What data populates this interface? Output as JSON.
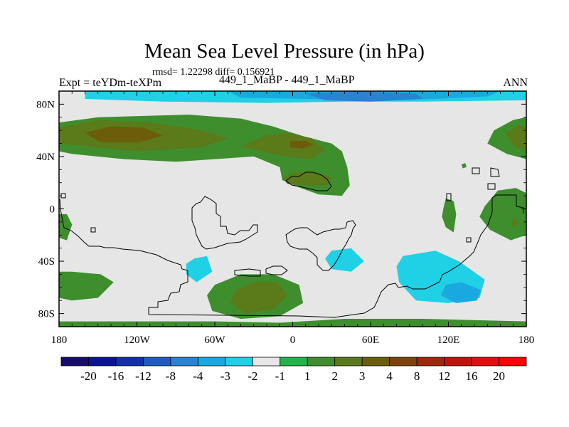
{
  "chart_data": {
    "type": "heatmap",
    "title": "Mean Sea Level Pressure (in hPa)",
    "stats_text": "rmsd= 1.22298 diff= 0.156921",
    "left_label": "Expt = teYDm-teXPm",
    "center_label": "449_1_MaBP - 449_1_MaBP",
    "right_label": "ANN",
    "xlabel": "",
    "ylabel": "",
    "xlim": [
      -180,
      180
    ],
    "ylim": [
      -90,
      90
    ],
    "x_ticks": [
      {
        "value": -180,
        "label": "180"
      },
      {
        "value": -120,
        "label": "120W"
      },
      {
        "value": -60,
        "label": "60W"
      },
      {
        "value": 0,
        "label": "0"
      },
      {
        "value": 60,
        "label": "60E"
      },
      {
        "value": 120,
        "label": "120E"
      },
      {
        "value": 180,
        "label": "180"
      }
    ],
    "y_ticks": [
      {
        "value": 80,
        "label": "80N"
      },
      {
        "value": 40,
        "label": "40N"
      },
      {
        "value": 0,
        "label": "0"
      },
      {
        "value": -40,
        "label": "40S"
      },
      {
        "value": -80,
        "label": "80S"
      }
    ],
    "colorbar": {
      "levels": [
        "-20",
        "-16",
        "-12",
        "-8",
        "-4",
        "-3",
        "-2",
        "-1",
        "1",
        "2",
        "3",
        "4",
        "8",
        "12",
        "16",
        "20"
      ],
      "colors": [
        "#160d6b",
        "#0a1596",
        "#1230a8",
        "#1e5cc0",
        "#2a82d2",
        "#1aa8e0",
        "#20d0e4",
        "#e6e6e6",
        "#22b44a",
        "#3e8e2e",
        "#5b7a1a",
        "#6c5d0a",
        "#7d420a",
        "#9e280a",
        "#c01408",
        "#e20e0e",
        "#ff0000"
      ]
    },
    "fields": [
      {
        "name": "arctic-band-neg1",
        "level": "-2 to -1",
        "poly": [
          [
            -180,
            76
          ],
          [
            180,
            76
          ],
          [
            180,
            90
          ],
          [
            -180,
            90
          ]
        ]
      },
      {
        "name": "arctic-band-neg2",
        "level": "-3 to -2",
        "poly": [
          [
            -160,
            90
          ],
          [
            -160,
            84
          ],
          [
            -100,
            82
          ],
          [
            -20,
            81
          ],
          [
            40,
            82
          ],
          [
            100,
            82
          ],
          [
            180,
            83
          ],
          [
            180,
            90
          ]
        ]
      },
      {
        "name": "arctic-band-neg3",
        "level": "-4 to -3",
        "poly": [
          [
            -50,
            90
          ],
          [
            -40,
            85
          ],
          [
            10,
            84
          ],
          [
            60,
            83
          ],
          [
            110,
            84
          ],
          [
            150,
            86
          ],
          [
            160,
            90
          ]
        ]
      },
      {
        "name": "arctic-core-neg4",
        "level": "-8 to -4",
        "poly": [
          [
            10,
            88
          ],
          [
            25,
            83
          ],
          [
            60,
            82
          ],
          [
            100,
            84
          ],
          [
            95,
            88
          ],
          [
            50,
            90
          ]
        ]
      },
      {
        "name": "north-atlantic-trough",
        "level": "-2 to -1",
        "poly": [
          [
            -30,
            68
          ],
          [
            -10,
            62
          ],
          [
            20,
            58
          ],
          [
            40,
            56
          ],
          [
            60,
            52
          ],
          [
            80,
            40
          ],
          [
            100,
            34
          ],
          [
            115,
            40
          ],
          [
            122,
            55
          ],
          [
            120,
            68
          ],
          [
            90,
            76
          ],
          [
            40,
            76
          ],
          [
            0,
            76
          ],
          [
            -30,
            74
          ]
        ]
      },
      {
        "name": "north-pacific-high",
        "level": "1 to 2",
        "poly": [
          [
            -180,
            66
          ],
          [
            -150,
            70
          ],
          [
            -80,
            72
          ],
          [
            -40,
            69
          ],
          [
            -15,
            63
          ],
          [
            0,
            58
          ],
          [
            10,
            55
          ],
          [
            30,
            50
          ],
          [
            38,
            44
          ],
          [
            42,
            32
          ],
          [
            44,
            18
          ],
          [
            38,
            10
          ],
          [
            20,
            11
          ],
          [
            6,
            16
          ],
          [
            -8,
            22
          ],
          [
            -10,
            32
          ],
          [
            -30,
            40
          ],
          [
            -60,
            38
          ],
          [
            -90,
            36
          ],
          [
            -130,
            38
          ],
          [
            -170,
            42
          ],
          [
            -180,
            44
          ]
        ]
      },
      {
        "name": "north-pacific-high-core",
        "level": "2 to 3",
        "poly": [
          [
            -180,
            62
          ],
          [
            -150,
            68
          ],
          [
            -110,
            66
          ],
          [
            -70,
            60
          ],
          [
            -50,
            54
          ],
          [
            -70,
            47
          ],
          [
            -120,
            44
          ],
          [
            -160,
            48
          ],
          [
            -180,
            50
          ]
        ]
      },
      {
        "name": "north-pacific-high-center",
        "level": "3 to 4",
        "poly": [
          [
            -160,
            58
          ],
          [
            -140,
            63
          ],
          [
            -115,
            62
          ],
          [
            -100,
            56
          ],
          [
            -118,
            51
          ],
          [
            -148,
            51
          ]
        ]
      },
      {
        "name": "north-atlantic-high-core",
        "level": "2 to 3",
        "poly": [
          [
            -20,
            56
          ],
          [
            -5,
            58
          ],
          [
            15,
            54
          ],
          [
            25,
            45
          ],
          [
            15,
            38
          ],
          [
            -5,
            40
          ],
          [
            -25,
            44
          ],
          [
            -40,
            48
          ]
        ]
      },
      {
        "name": "north-atlantic-high-center",
        "level": "3 to 4",
        "poly": [
          [
            -2,
            52
          ],
          [
            10,
            52
          ],
          [
            16,
            49
          ],
          [
            8,
            46
          ],
          [
            -2,
            47
          ]
        ]
      },
      {
        "name": "sahara-high-core",
        "level": "2 to 3",
        "poly": [
          [
            -8,
            24
          ],
          [
            3,
            28
          ],
          [
            18,
            28
          ],
          [
            30,
            24
          ],
          [
            26,
            18
          ],
          [
            10,
            18
          ],
          [
            -4,
            19
          ]
        ]
      },
      {
        "name": "siberia-high",
        "level": "1 to 2",
        "poly": [
          [
            155,
            60
          ],
          [
            170,
            68
          ],
          [
            180,
            70
          ],
          [
            180,
            38
          ],
          [
            165,
            42
          ],
          [
            150,
            50
          ]
        ]
      },
      {
        "name": "siberia-high-core",
        "level": "2 to 3",
        "poly": [
          [
            164,
            58
          ],
          [
            174,
            64
          ],
          [
            180,
            62
          ],
          [
            180,
            44
          ],
          [
            170,
            48
          ]
        ]
      },
      {
        "name": "arabia-low-patch",
        "level": "1 to 2",
        "poly": [
          [
            130,
            34
          ],
          [
            133,
            35
          ],
          [
            134,
            32
          ],
          [
            131,
            31
          ]
        ]
      },
      {
        "name": "australia-high",
        "level": "1 to 2",
        "poly": [
          [
            148,
            2
          ],
          [
            158,
            14
          ],
          [
            172,
            16
          ],
          [
            180,
            12
          ],
          [
            180,
            -20
          ],
          [
            168,
            -24
          ],
          [
            152,
            -16
          ],
          [
            144,
            -6
          ]
        ]
      },
      {
        "name": "australia-high-core",
        "level": "2 to 3",
        "poly": [
          [
            168,
            -10
          ],
          [
            172,
            -7
          ],
          [
            174,
            -12
          ],
          [
            170,
            -14
          ]
        ]
      },
      {
        "name": "india-high",
        "level": "1 to 2",
        "poly": [
          [
            116,
            0
          ],
          [
            118,
            8
          ],
          [
            124,
            6
          ],
          [
            126,
            -4
          ],
          [
            124,
            -18
          ],
          [
            118,
            -14
          ],
          [
            115,
            -6
          ]
        ]
      },
      {
        "name": "east-pacific-patch",
        "level": "1 to 2",
        "poly": [
          [
            -180,
            -4
          ],
          [
            -174,
            -4
          ],
          [
            -170,
            -12
          ],
          0,
          [
            -174,
            -24
          ],
          [
            -180,
            -22
          ]
        ]
      },
      {
        "name": "south-pacific-high",
        "level": "1 to 2",
        "poly": [
          [
            -180,
            -48
          ],
          [
            -170,
            -48
          ],
          [
            -148,
            -50
          ],
          [
            -138,
            -56
          ],
          [
            -150,
            -68
          ],
          [
            -170,
            -70
          ],
          [
            -180,
            -68
          ]
        ]
      },
      {
        "name": "southern-trough-outer",
        "level": "-2 to -1",
        "poly": [
          [
            -82,
            -34
          ],
          [
            -50,
            -29
          ],
          [
            -10,
            -25
          ],
          [
            30,
            -24
          ],
          [
            70,
            -22
          ],
          [
            100,
            -22
          ],
          [
            122,
            -25
          ],
          [
            140,
            -31
          ],
          [
            150,
            -38
          ],
          [
            162,
            -46
          ],
          [
            156,
            -60
          ],
          [
            130,
            -70
          ],
          [
            100,
            -72
          ],
          [
            60,
            -74
          ],
          [
            40,
            -78
          ],
          [
            20,
            -85
          ],
          [
            -10,
            -86
          ],
          [
            -40,
            -84
          ],
          [
            -60,
            -82
          ],
          [
            -76,
            -76
          ],
          [
            -82,
            -60
          ],
          [
            -86,
            -44
          ]
        ]
      },
      {
        "name": "southern-trough-mid-west",
        "level": "-3 to -2",
        "poly": [
          [
            -76,
            -38
          ],
          [
            -66,
            -36
          ],
          [
            -62,
            -48
          ],
          [
            -74,
            -56
          ],
          [
            -82,
            -50
          ],
          [
            -82,
            -42
          ]
        ]
      },
      {
        "name": "southern-trough-mid-central",
        "level": "-3 to -2",
        "poly": [
          [
            30,
            -32
          ],
          [
            45,
            -30
          ],
          [
            55,
            -40
          ],
          [
            45,
            -48
          ],
          [
            30,
            -46
          ],
          [
            25,
            -38
          ]
        ]
      },
      {
        "name": "southern-trough-mid-east",
        "level": "-3 to -2",
        "poly": [
          [
            85,
            -36
          ],
          [
            110,
            -32
          ],
          [
            128,
            -40
          ],
          [
            148,
            -54
          ],
          [
            144,
            -68
          ],
          [
            120,
            -72
          ],
          [
            95,
            -70
          ],
          [
            82,
            -56
          ],
          [
            80,
            -44
          ]
        ]
      },
      {
        "name": "southern-trough-core",
        "level": "-4 to -3",
        "poly": [
          [
            118,
            -58
          ],
          [
            130,
            -56
          ],
          [
            145,
            -62
          ],
          [
            142,
            -70
          ],
          [
            126,
            -72
          ],
          [
            114,
            -66
          ]
        ]
      },
      {
        "name": "south-atlantic-high",
        "level": "1 to 2",
        "poly": [
          [
            -60,
            -58
          ],
          [
            -40,
            -50
          ],
          [
            -15,
            -50
          ],
          [
            5,
            -58
          ],
          [
            8,
            -72
          ],
          [
            -10,
            -82
          ],
          [
            -40,
            -84
          ],
          [
            -62,
            -78
          ],
          [
            -66,
            -66
          ]
        ]
      },
      {
        "name": "south-atlantic-high-core",
        "level": "2 to 3",
        "poly": [
          [
            -44,
            -62
          ],
          [
            -30,
            -56
          ],
          [
            -12,
            -56
          ],
          [
            -4,
            -66
          ],
          [
            -14,
            -76
          ],
          [
            -36,
            -80
          ],
          [
            -48,
            -72
          ]
        ]
      },
      {
        "name": "antarctic-high",
        "level": "1 to 2",
        "poly": [
          [
            -180,
            -86
          ],
          [
            -60,
            -86
          ],
          [
            -10,
            -87
          ],
          [
            40,
            -84
          ],
          [
            100,
            -84
          ],
          [
            180,
            -86
          ],
          [
            180,
            -90
          ],
          [
            -180,
            -90
          ]
        ]
      }
    ]
  }
}
